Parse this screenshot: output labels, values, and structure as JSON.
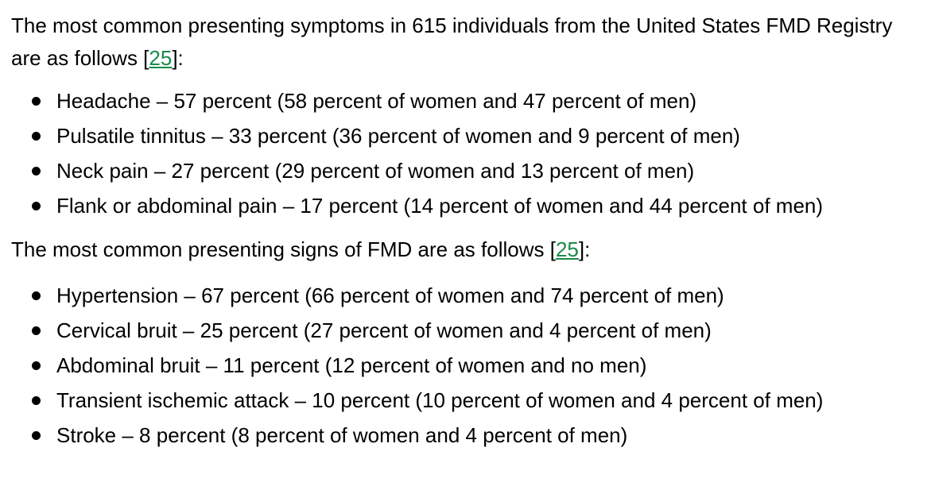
{
  "intro_symptoms": {
    "text": "The most common presenting symptoms in 615 individuals from the United States FMD Registry are as follows [",
    "ref": "25",
    "after": "]:"
  },
  "symptoms": [
    "Headache – 57 percent (58 percent of women and 47 percent of men)",
    "Pulsatile tinnitus – 33 percent (36 percent of women and 9 percent of men)",
    "Neck pain – 27 percent (29 percent of women and 13 percent of men)",
    "Flank or abdominal pain – 17 percent (14 percent of women and 44 percent of men)"
  ],
  "intro_signs": {
    "text": "The most common presenting signs of FMD are as follows [",
    "ref": "25",
    "after": "]:"
  },
  "signs": [
    "Hypertension – 67 percent (66 percent of women and 74 percent of men)",
    "Cervical bruit – 25 percent (27 percent of women and 4 percent of men)",
    "Abdominal bruit – 11 percent (12 percent of women and no men)",
    "Transient ischemic attack – 10 percent (10 percent of women and 4 percent of men)",
    "Stroke – 8 percent (8 percent of women and 4 percent of men)"
  ],
  "colors": {
    "link": "#1a8a4a",
    "text": "#000000",
    "background": "#ffffff"
  }
}
